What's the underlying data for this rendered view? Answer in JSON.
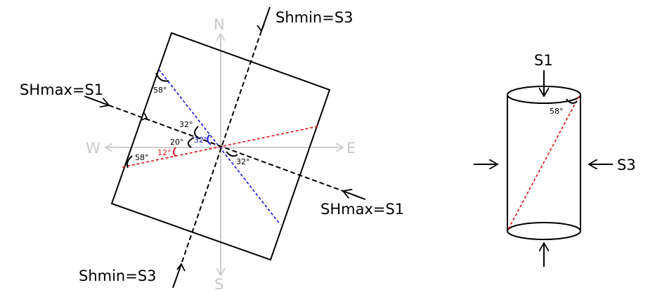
{
  "compass": {
    "north": "N",
    "south": "S",
    "east": "E",
    "west": "W"
  },
  "stress_labels": {
    "shmax_left": "SHmax=S1",
    "shmax_right": "SHmax=S1",
    "shmin_top": "Shmin=S3",
    "shmin_bottom": "Shmin=S3"
  },
  "angles": {
    "a58_top": "58°",
    "a32_upper": "32°",
    "a20": "20°",
    "a32_blue": "32°",
    "a12_red": "12°",
    "a58_left": "58°",
    "a32_lower": "32°",
    "a58_cyl": "58°"
  },
  "cylinder_labels": {
    "top": "S1",
    "right": "S3"
  },
  "colors": {
    "blue_plane": "#1a1adb",
    "red_plane": "#e21d1d",
    "compass_gray": "#c8c8c8",
    "angle_red": "#e21d1d",
    "angle_blue": "#1a1adb"
  }
}
